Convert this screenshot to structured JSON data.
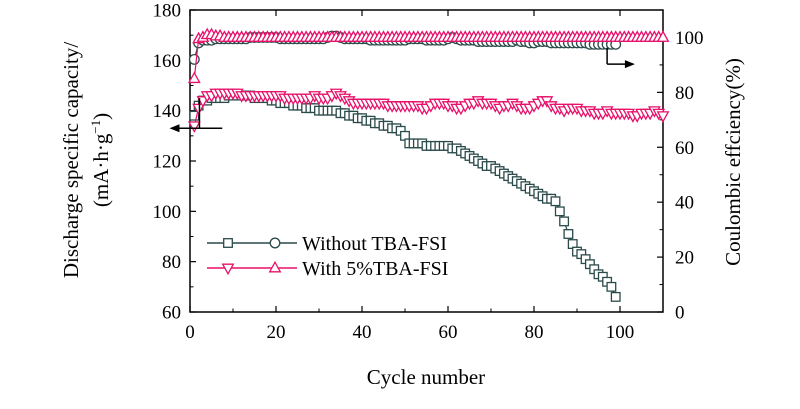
{
  "chart_data": {
    "type": "scatter",
    "xlabel": "Cycle number",
    "ylabel_left_line1": "Discharge specific capacity/",
    "ylabel_left_line2": "(mA·h·g",
    "ylabel_left_sup": "−1",
    "ylabel_left_close": ")",
    "ylabel_right": "Coulombic effciency(%)",
    "xlim": [
      0,
      110
    ],
    "ylim_left": [
      60,
      180
    ],
    "ylim_right": [
      0,
      110
    ],
    "x_ticks": [
      0,
      20,
      40,
      60,
      80,
      100
    ],
    "y_left_ticks": [
      60,
      80,
      100,
      120,
      140,
      160,
      180
    ],
    "y_right_ticks": [
      0,
      20,
      40,
      60,
      80,
      100
    ],
    "colors": {
      "without": "#2b4a4a",
      "with": "#e8106a"
    },
    "legend": [
      {
        "label": "Without TBA-FSI",
        "color": "#2b4a4a",
        "marker": "square",
        "marker2": "circle"
      },
      {
        "label": "With 5%TBA-FSI",
        "color": "#e8106a",
        "marker": "triangle-down",
        "marker2": "triangle-up"
      }
    ],
    "series": [
      {
        "name": "Without TBA-FSI capacity",
        "axis": "left",
        "marker": "square",
        "color": "#2b4a4a",
        "x": [
          1,
          2,
          3,
          4,
          5,
          6,
          7,
          8,
          9,
          10,
          11,
          12,
          13,
          14,
          15,
          16,
          17,
          18,
          19,
          20,
          21,
          22,
          23,
          24,
          25,
          26,
          27,
          28,
          29,
          30,
          31,
          32,
          33,
          34,
          35,
          36,
          37,
          38,
          39,
          40,
          41,
          42,
          43,
          44,
          45,
          46,
          47,
          48,
          49,
          50,
          51,
          52,
          53,
          54,
          55,
          56,
          57,
          58,
          59,
          60,
          61,
          62,
          63,
          64,
          65,
          66,
          67,
          68,
          69,
          70,
          71,
          72,
          73,
          74,
          75,
          76,
          77,
          78,
          79,
          80,
          81,
          82,
          83,
          84,
          85,
          86,
          87,
          88,
          89,
          90,
          91,
          92,
          93,
          94,
          95,
          96,
          97,
          98,
          99
        ],
        "values": [
          138,
          142,
          144,
          144,
          145,
          145,
          145,
          145,
          146,
          146,
          146,
          146,
          146,
          146,
          145,
          145,
          145,
          145,
          144,
          144,
          143,
          143,
          143,
          142,
          142,
          142,
          141,
          141,
          141,
          140,
          140,
          140,
          140,
          140,
          139,
          139,
          138,
          138,
          137,
          137,
          136,
          136,
          135,
          135,
          134,
          134,
          133,
          133,
          132,
          130,
          127,
          127,
          127,
          127,
          126,
          126,
          126,
          126,
          126,
          126,
          125,
          125,
          124,
          123,
          122,
          121,
          120,
          119,
          118,
          118,
          117,
          116,
          115,
          114,
          113,
          112,
          111,
          110,
          109,
          108,
          107,
          106,
          105,
          105,
          104,
          100,
          96,
          91,
          87,
          84,
          83,
          81,
          79,
          77,
          75,
          74,
          72,
          70,
          66
        ]
      },
      {
        "name": "Without TBA-FSI efficiency",
        "axis": "right",
        "marker": "circle",
        "color": "#2b4a4a",
        "x": [
          1,
          2,
          3,
          4,
          5,
          6,
          7,
          8,
          9,
          10,
          11,
          12,
          13,
          14,
          15,
          16,
          17,
          18,
          19,
          20,
          21,
          22,
          23,
          24,
          25,
          26,
          27,
          28,
          29,
          30,
          31,
          32,
          33,
          34,
          35,
          36,
          37,
          38,
          39,
          40,
          41,
          42,
          43,
          44,
          45,
          46,
          47,
          48,
          49,
          50,
          51,
          52,
          53,
          54,
          55,
          56,
          57,
          58,
          59,
          60,
          61,
          62,
          63,
          64,
          65,
          66,
          67,
          68,
          69,
          70,
          71,
          72,
          73,
          74,
          75,
          76,
          77,
          78,
          79,
          80,
          81,
          82,
          83,
          84,
          85,
          86,
          87,
          88,
          89,
          90,
          91,
          92,
          93,
          94,
          95,
          96,
          97,
          98,
          99
        ],
        "values": [
          92,
          98,
          99,
          99,
          99,
          99.5,
          99.5,
          99.5,
          99.5,
          99.5,
          99.5,
          99.5,
          99.5,
          100,
          100,
          100,
          100,
          100,
          100,
          100,
          99.5,
          99.5,
          99.5,
          99.5,
          99.5,
          99.5,
          99.5,
          99.5,
          99.5,
          99.5,
          99.5,
          100,
          100.5,
          100.5,
          100,
          99.5,
          99.5,
          99.5,
          99.5,
          99.5,
          99.5,
          99,
          99,
          99,
          99,
          99,
          99,
          99,
          99,
          99,
          99.5,
          99.5,
          99.5,
          99.5,
          99,
          99,
          99,
          99,
          99,
          99.5,
          100,
          99.5,
          99,
          99,
          99,
          99,
          98.5,
          98.5,
          98.5,
          98.5,
          98.5,
          98.5,
          98.5,
          98.5,
          98.5,
          99,
          98.5,
          98.5,
          98,
          98,
          98.5,
          98.5,
          98.5,
          98,
          98,
          98,
          98,
          98,
          98,
          98,
          98,
          98,
          97.5,
          97.5,
          97.5,
          97.5,
          97.5,
          97.5,
          97.5
        ]
      },
      {
        "name": "With 5%TBA-FSI capacity",
        "axis": "left",
        "marker": "triangle-down",
        "color": "#e8106a",
        "x": [
          1,
          2,
          3,
          4,
          5,
          6,
          7,
          8,
          9,
          10,
          11,
          12,
          13,
          14,
          15,
          16,
          17,
          18,
          19,
          20,
          21,
          22,
          23,
          24,
          25,
          26,
          27,
          28,
          29,
          30,
          31,
          32,
          33,
          34,
          35,
          36,
          37,
          38,
          39,
          40,
          41,
          42,
          43,
          44,
          45,
          46,
          47,
          48,
          49,
          50,
          51,
          52,
          53,
          54,
          55,
          56,
          57,
          58,
          59,
          60,
          61,
          62,
          63,
          64,
          65,
          66,
          67,
          68,
          69,
          70,
          71,
          72,
          73,
          74,
          75,
          76,
          77,
          78,
          79,
          80,
          81,
          82,
          83,
          84,
          85,
          86,
          87,
          88,
          89,
          90,
          91,
          92,
          93,
          94,
          95,
          96,
          97,
          98,
          99,
          100,
          101,
          102,
          103,
          104,
          105,
          106,
          107,
          108,
          109,
          110
        ],
        "values": [
          134,
          141,
          144,
          146,
          146,
          147,
          147,
          147,
          147,
          147,
          147,
          146,
          146,
          146,
          146,
          146,
          146,
          146,
          146,
          146,
          146,
          145,
          145,
          145,
          145,
          145,
          145,
          145,
          146,
          145,
          145,
          145,
          146,
          147,
          146,
          145,
          144,
          143,
          143,
          143,
          143,
          143,
          143,
          143,
          143,
          142,
          142,
          142,
          142,
          142,
          142,
          142,
          142,
          141,
          141,
          142,
          143,
          143,
          143,
          142,
          142,
          141,
          141,
          142,
          143,
          143,
          144,
          143,
          143,
          143,
          142,
          141,
          142,
          142,
          143,
          142,
          141,
          141,
          141,
          142,
          143,
          144,
          144,
          142,
          141,
          141,
          140,
          141,
          141,
          141,
          140,
          140,
          140,
          139,
          139,
          139,
          140,
          139,
          139,
          139,
          139,
          139,
          138,
          138,
          139,
          139,
          139,
          140,
          139,
          138
        ]
      },
      {
        "name": "With 5%TBA-FSI efficiency",
        "axis": "right",
        "marker": "triangle-up",
        "color": "#e8106a",
        "x": [
          1,
          2,
          3,
          4,
          5,
          6,
          7,
          8,
          9,
          10,
          11,
          12,
          13,
          14,
          15,
          16,
          17,
          18,
          19,
          20,
          21,
          22,
          23,
          24,
          25,
          26,
          27,
          28,
          29,
          30,
          31,
          32,
          33,
          34,
          35,
          36,
          37,
          38,
          39,
          40,
          41,
          42,
          43,
          44,
          45,
          46,
          47,
          48,
          49,
          50,
          51,
          52,
          53,
          54,
          55,
          56,
          57,
          58,
          59,
          60,
          61,
          62,
          63,
          64,
          65,
          66,
          67,
          68,
          69,
          70,
          71,
          72,
          73,
          74,
          75,
          76,
          77,
          78,
          79,
          80,
          81,
          82,
          83,
          84,
          85,
          86,
          87,
          88,
          89,
          90,
          91,
          92,
          93,
          94,
          95,
          96,
          97,
          98,
          99,
          100,
          101,
          102,
          103,
          104,
          105,
          106,
          107,
          108,
          109,
          110
        ],
        "values": [
          85,
          99.5,
          100,
          101,
          101,
          100.5,
          100.5,
          100,
          100,
          100,
          100,
          100,
          100,
          100,
          100,
          100,
          100,
          100,
          100,
          100,
          100,
          100,
          100,
          100,
          100,
          100,
          100,
          100,
          100,
          100,
          100,
          100,
          100,
          100,
          100,
          100,
          100,
          100,
          100,
          100,
          100,
          100,
          100,
          100,
          100,
          100,
          100,
          100,
          100,
          100,
          100,
          100,
          100,
          100,
          100,
          100,
          100,
          100,
          100,
          100,
          100,
          100,
          100,
          100,
          100,
          100,
          100,
          100,
          100,
          100,
          100,
          100,
          100,
          100,
          100,
          100,
          100,
          100,
          100,
          100,
          100,
          100,
          100,
          100,
          100,
          100,
          100,
          100,
          100,
          100,
          100,
          100,
          100,
          100,
          100,
          100,
          100,
          100,
          100,
          100,
          100,
          100,
          100,
          100,
          100,
          100,
          100,
          100,
          100,
          100
        ]
      }
    ],
    "annotations": [
      {
        "name": "left-axis-arrow",
        "direction": "left",
        "x": 2.2,
        "y_left": 133,
        "target": 7.5,
        "y_from": 145
      },
      {
        "name": "right-axis-arrow",
        "direction": "right",
        "x": 97,
        "y_left": 158.5,
        "target": 103,
        "y_from": 165
      }
    ]
  }
}
